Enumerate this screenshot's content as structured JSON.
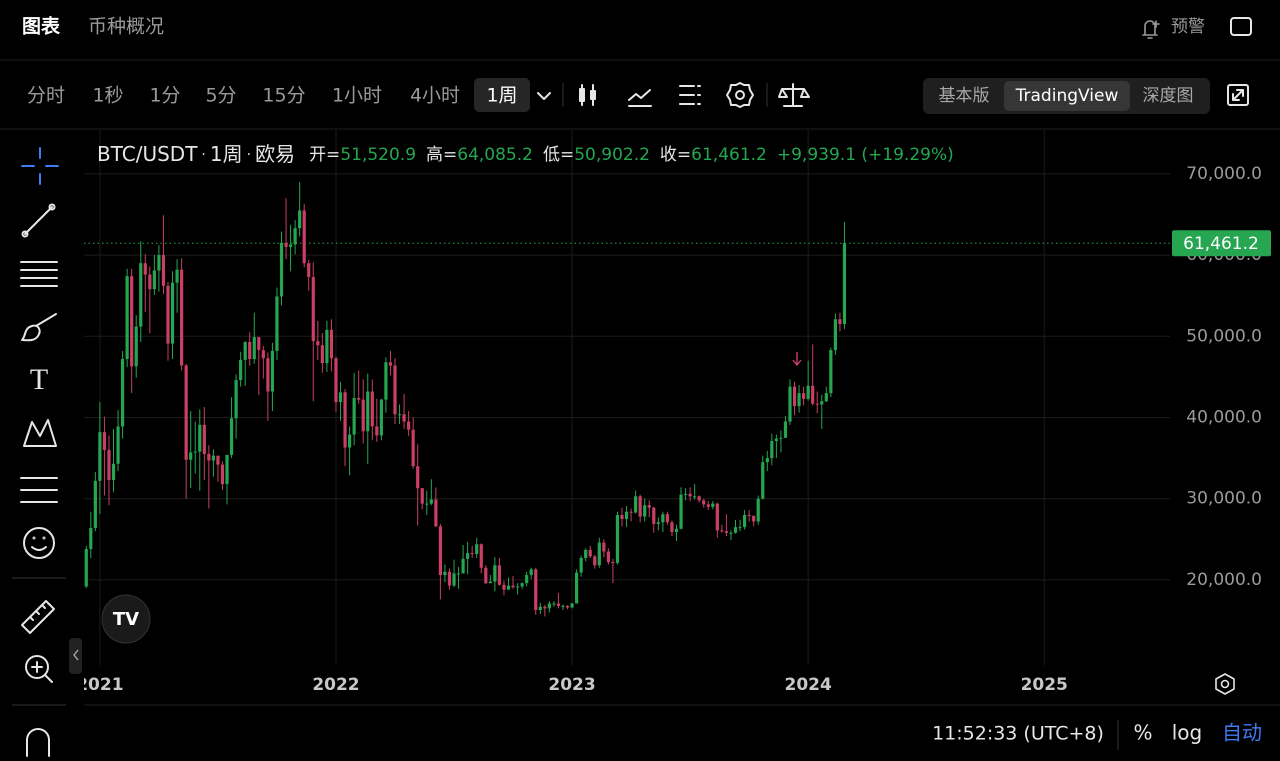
{
  "ui": {
    "tabs": [
      "图表",
      "币种概况"
    ],
    "alert": "预警",
    "timeframes": [
      "分时",
      "1秒",
      "1分",
      "5分",
      "15分",
      "1小时",
      "4小时",
      "1周"
    ],
    "selected_timeframe": 7,
    "views": [
      "基本版",
      "TradingView",
      "深度图"
    ],
    "selected_view": 1,
    "legend": {
      "symbol": "BTC/USDT",
      "interval": "1周",
      "exchange": "欧易",
      "open_label": "开=",
      "open": "51,520.9",
      "high_label": "高=",
      "high": "64,085.2",
      "low_label": "低=",
      "low": "50,902.2",
      "close_label": "收=",
      "close": "61,461.2",
      "change": "+9,939.1 (+19.29%)"
    },
    "footer": {
      "time": "11:52:33 (UTC+8)",
      "percent": "%",
      "log": "log",
      "auto": "自动"
    }
  },
  "chart_data": {
    "type": "candlestick",
    "up_color": "#26a650",
    "down_color": "#c93f66",
    "grid": true,
    "xlim": [
      -0.5,
      238.7
    ],
    "xticks": [
      {
        "value": 3,
        "label": "2021"
      },
      {
        "value": 55,
        "label": "2022"
      },
      {
        "value": 107,
        "label": "2023"
      },
      {
        "value": 159,
        "label": "2024"
      },
      {
        "value": 211,
        "label": "2025"
      }
    ],
    "ylim": [
      4600,
      75400
    ],
    "yticks": [
      {
        "value": 20000,
        "label": "20,000.0"
      },
      {
        "value": 30000,
        "label": "30,000.0"
      },
      {
        "value": 40000,
        "label": "40,000.0"
      },
      {
        "value": 50000,
        "label": "50,000.0"
      },
      {
        "value": 60000,
        "label": "60,000.0"
      },
      {
        "value": 70000,
        "label": "70,000.0"
      }
    ],
    "last_price_label": "61,461.2",
    "open": [
      19200,
      23800,
      26400,
      32200,
      38200,
      36000,
      32300,
      34300,
      38900,
      47200,
      57400,
      46300,
      51200,
      59000,
      57600,
      55800,
      58100,
      60000,
      56200,
      49100,
      56600,
      58200,
      46400,
      34800,
      35700,
      35800,
      39100,
      35500,
      34700,
      35300,
      34200,
      31800,
      35400,
      39900,
      44600,
      47100,
      49300,
      47200,
      49900,
      48300,
      47300,
      43200,
      48200,
      54900,
      61500,
      61000,
      61300,
      63300,
      65500,
      59000,
      57300,
      49400,
      48900,
      46700,
      50800,
      47300,
      41900,
      43100,
      36300,
      37900,
      42400,
      42200,
      38300,
      43200,
      38900,
      37800,
      42200,
      46800,
      46400,
      40400,
      40400,
      39500,
      38500,
      34000,
      31300,
      29400,
      29400,
      29900,
      26600,
      20600,
      21000,
      19300,
      20800,
      20800,
      22600,
      23300,
      23200,
      24400,
      21500,
      19600,
      19800,
      21800,
      19400,
      18800,
      19300,
      19100,
      19200,
      19600,
      20600,
      21300,
      16300,
      16700,
      16500,
      17100,
      17100,
      16800,
      16800,
      16600,
      17100,
      20900,
      22700,
      23700,
      22900,
      21800,
      24600,
      23500,
      22200,
      22100,
      28000,
      27500,
      28400,
      28300,
      30300,
      27800,
      29200,
      28900,
      26900,
      27100,
      28100,
      27100,
      25900,
      26300,
      30500,
      30600,
      30300,
      30300,
      29800,
      29300,
      29000,
      29400,
      26100,
      26000,
      25800,
      25800,
      26500,
      26500,
      28000,
      27900,
      27200,
      30000,
      34500,
      35000,
      37100,
      37400,
      37500,
      39500,
      43800,
      41400,
      43000,
      42300,
      43900,
      41700,
      41600,
      42000,
      43000,
      48300,
      52100,
      51520.9
    ],
    "high": [
      24200,
      28400,
      33300,
      41900,
      40100,
      37800,
      38600,
      40900,
      48200,
      58300,
      58300,
      52600,
      61700,
      60100,
      58600,
      60000,
      61200,
      64900,
      56700,
      58000,
      59500,
      59600,
      46600,
      40800,
      39500,
      41000,
      41300,
      36600,
      36100,
      35300,
      34600,
      35400,
      42500,
      45300,
      48100,
      49400,
      50500,
      52900,
      49900,
      48800,
      48000,
      49200,
      56000,
      62900,
      67000,
      63700,
      64300,
      69000,
      66300,
      59400,
      59100,
      51900,
      50400,
      51900,
      52100,
      47500,
      44400,
      43500,
      38900,
      45500,
      45800,
      44700,
      45400,
      44700,
      42300,
      42300,
      47400,
      48200,
      47300,
      41600,
      42900,
      40800,
      40000,
      36700,
      31300,
      31000,
      32400,
      31400,
      26900,
      21900,
      21400,
      22500,
      21600,
      24300,
      24700,
      24200,
      25200,
      24500,
      21800,
      20600,
      22800,
      22700,
      19900,
      20300,
      20500,
      19600,
      19700,
      21000,
      21500,
      21500,
      17200,
      16900,
      17400,
      17400,
      18400,
      17000,
      16900,
      17200,
      21300,
      23000,
      23900,
      24200,
      23100,
      25200,
      25000,
      23900,
      22600,
      28400,
      28900,
      29100,
      28800,
      31000,
      30500,
      30000,
      29800,
      29000,
      27700,
      28400,
      28400,
      27300,
      26800,
      31400,
      31300,
      31400,
      31800,
      30400,
      30000,
      29700,
      29700,
      29500,
      26800,
      28100,
      26100,
      27400,
      27400,
      28600,
      28600,
      27900,
      30400,
      35300,
      35900,
      38000,
      37900,
      38400,
      40200,
      44700,
      44400,
      44000,
      43800,
      47000,
      49000,
      43200,
      42800,
      43800,
      48600,
      52800,
      52900,
      64085.2
    ],
    "low": [
      19000,
      22700,
      26000,
      28100,
      30400,
      29200,
      30800,
      33400,
      37400,
      46200,
      43000,
      44900,
      49300,
      53000,
      50400,
      55100,
      55500,
      55200,
      47000,
      47200,
      52900,
      45800,
      30000,
      31300,
      33100,
      31000,
      32300,
      28800,
      32700,
      32100,
      31100,
      29300,
      35000,
      37400,
      43800,
      43900,
      46400,
      46600,
      42800,
      44800,
      39600,
      40800,
      47100,
      53800,
      59500,
      58000,
      60100,
      62300,
      58500,
      55600,
      42000,
      47100,
      45500,
      45600,
      45700,
      40700,
      39600,
      34000,
      32900,
      36600,
      41700,
      36800,
      34300,
      37200,
      37000,
      37200,
      40600,
      45200,
      39200,
      39200,
      38600,
      37700,
      33700,
      26700,
      28700,
      28000,
      29200,
      26500,
      17600,
      19700,
      18800,
      19100,
      18900,
      20800,
      20700,
      22700,
      22700,
      20800,
      19500,
      19600,
      18600,
      19300,
      18100,
      18800,
      18900,
      18200,
      18900,
      19200,
      20100,
      15700,
      15800,
      15500,
      16000,
      16700,
      16500,
      16300,
      16400,
      16500,
      17100,
      20400,
      22300,
      22700,
      21400,
      21500,
      22800,
      21900,
      19600,
      21900,
      26600,
      26500,
      27200,
      28200,
      27100,
      27200,
      27700,
      25800,
      26100,
      25900,
      26800,
      25400,
      24800,
      26200,
      29800,
      29700,
      29900,
      29500,
      28900,
      28600,
      28700,
      25200,
      25800,
      25400,
      24900,
      25700,
      26000,
      26200,
      27200,
      26600,
      26800,
      29900,
      33400,
      34100,
      35000,
      35700,
      37500,
      39100,
      40300,
      40600,
      41500,
      42100,
      41500,
      40500,
      38600,
      41900,
      42500,
      47700,
      50600,
      50902.2
    ],
    "close": [
      23800,
      26400,
      32200,
      38200,
      36000,
      32300,
      34300,
      38900,
      47200,
      57400,
      46300,
      51200,
      59000,
      57600,
      55800,
      58100,
      60000,
      56200,
      49100,
      56600,
      58200,
      46400,
      34800,
      35700,
      35800,
      39100,
      35500,
      34700,
      35300,
      34200,
      31800,
      35400,
      39900,
      44600,
      47100,
      49300,
      47200,
      49900,
      48300,
      47300,
      43200,
      48200,
      54900,
      61500,
      61000,
      61300,
      63300,
      65500,
      59000,
      57300,
      49400,
      48900,
      46700,
      50800,
      47300,
      41900,
      43100,
      36300,
      37900,
      42400,
      42200,
      38300,
      43200,
      38900,
      37800,
      42200,
      46800,
      46400,
      40400,
      40400,
      39500,
      38500,
      34000,
      31300,
      29400,
      29400,
      29900,
      26600,
      20600,
      21000,
      19300,
      20800,
      20800,
      22600,
      23300,
      23200,
      24400,
      21500,
      19600,
      19800,
      21800,
      19400,
      18800,
      19300,
      19100,
      19200,
      19600,
      20600,
      21300,
      16300,
      16700,
      16500,
      17100,
      17100,
      16800,
      16800,
      16600,
      17100,
      20900,
      22700,
      23700,
      22900,
      21800,
      24600,
      23500,
      22200,
      22100,
      28000,
      27500,
      28400,
      28300,
      30300,
      27800,
      29200,
      28900,
      26900,
      27100,
      28100,
      27100,
      25900,
      26300,
      30500,
      30600,
      30300,
      30300,
      29800,
      29300,
      29000,
      29400,
      26100,
      26000,
      25800,
      25800,
      26500,
      26500,
      28000,
      27900,
      27200,
      30000,
      34500,
      35000,
      37100,
      37400,
      37500,
      39500,
      43800,
      41400,
      43000,
      42300,
      43900,
      41700,
      41600,
      42000,
      43000,
      48300,
      52100,
      51520.9,
      61461.2
    ]
  }
}
